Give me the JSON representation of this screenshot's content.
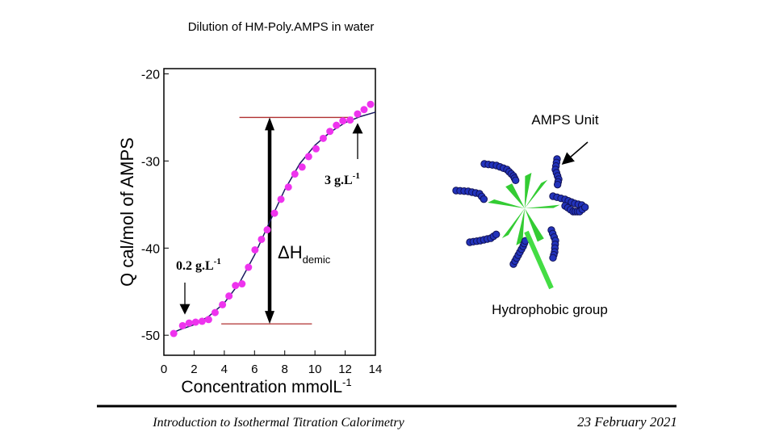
{
  "slide_title": "Dilution of HM-Poly.AMPS in water",
  "chart_data": {
    "type": "scatter",
    "y_label": "Q cal/mol of AMPS",
    "x_label": {
      "text": "Concentration mmolL",
      "superscript": "-1"
    },
    "xlim": [
      0,
      14
    ],
    "xticks": [
      0,
      2,
      4,
      6,
      8,
      10,
      12,
      14
    ],
    "ylim": [
      -52.3,
      -19.4
    ],
    "yticks": [
      -50,
      -40,
      -30,
      -20
    ],
    "series": [
      {
        "color": "#ee33ee",
        "x": [
          0.65,
          1.24,
          1.67,
          2.1,
          2.53,
          2.96,
          3.39,
          3.88,
          4.31,
          4.74,
          5.17,
          5.6,
          6.03,
          6.46,
          6.84,
          7.32,
          7.75,
          8.24,
          8.67,
          9.15,
          9.58,
          10.07,
          10.55,
          10.99,
          11.42,
          11.85,
          12.33,
          12.82,
          13.25,
          13.68
        ],
        "values": [
          -49.8,
          -48.9,
          -48.6,
          -48.5,
          -48.4,
          -48.2,
          -47.4,
          -46.5,
          -45.5,
          -44.3,
          -44.1,
          -42.2,
          -40.2,
          -39.0,
          -37.9,
          -36.0,
          -34.4,
          -33.0,
          -31.5,
          -30.7,
          -29.5,
          -28.6,
          -27.4,
          -26.6,
          -25.9,
          -25.4,
          -25.3,
          -24.6,
          -24.1,
          -23.5
        ]
      }
    ],
    "fit": {
      "color": "#1a1a60",
      "x": [
        0.5,
        1,
        2,
        3,
        4,
        5,
        6,
        7,
        8,
        9,
        10,
        11,
        12,
        13,
        14
      ],
      "values": [
        -49.8,
        -49.4,
        -48.8,
        -47.8,
        -46.3,
        -44.0,
        -40.8,
        -37.0,
        -33.3,
        -30.3,
        -28.2,
        -26.7,
        -25.6,
        -24.9,
        -24.4
      ]
    },
    "reference_lines": [
      {
        "color": "#b03030",
        "y": -25,
        "x": [
          5,
          12.5
        ]
      },
      {
        "color": "#b03030",
        "y": -48.7,
        "x": [
          3.8,
          9.8
        ]
      }
    ],
    "span_arrow": {
      "x": 7,
      "y": [
        -25,
        -48.7
      ]
    },
    "annotations": [
      {
        "text": "3 g.L",
        "superscript": "-1"
      },
      {
        "text": "0.2 g.L",
        "superscript": "-1"
      },
      {
        "text": "ΔH",
        "subscript": "demic"
      }
    ]
  },
  "diagram": {
    "labels": [
      "AMPS Unit",
      "Hydrophobic group"
    ]
  },
  "footer": {
    "left": "Introduction to Isothermal Titration Calorimetry",
    "right": "23 February 2021"
  }
}
